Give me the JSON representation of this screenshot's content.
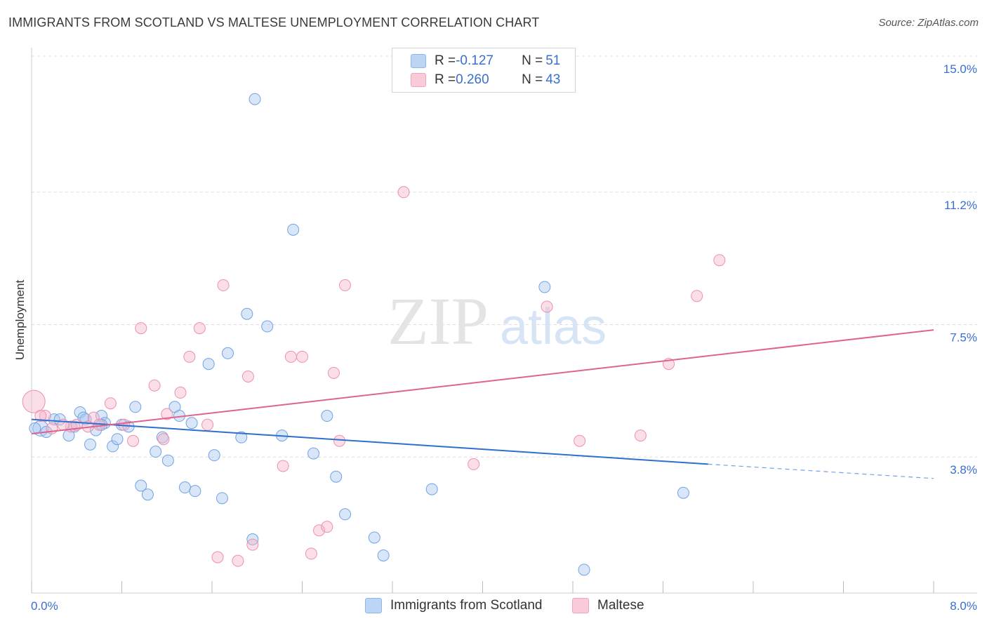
{
  "header": {
    "title": "IMMIGRANTS FROM SCOTLAND VS MALTESE UNEMPLOYMENT CORRELATION CHART",
    "source": "Source: ZipAtlas.com"
  },
  "watermark": {
    "zip": "ZIP",
    "atlas": "atlas"
  },
  "legend": {
    "rows": [
      {
        "r_label": "R = ",
        "r_value": "-0.127",
        "n_label": "N = ",
        "n_value": "51",
        "color": "#a9c8f0"
      },
      {
        "r_label": "R = ",
        "r_value": "0.260",
        "n_label": "N = ",
        "n_value": "43",
        "color": "#f5b8cb"
      }
    ]
  },
  "bottom_legend": {
    "items": [
      {
        "label": "Immigrants from Scotland",
        "color": "#a9c8f0"
      },
      {
        "label": "Maltese",
        "color": "#f5b8cb"
      }
    ]
  },
  "chart_data": {
    "type": "scatter",
    "title": "IMMIGRANTS FROM SCOTLAND VS MALTESE UNEMPLOYMENT CORRELATION CHART",
    "xlabel": "",
    "ylabel": "Unemployment",
    "xlim": [
      0,
      8.0
    ],
    "ylim": [
      0,
      15.0
    ],
    "x_tick_labels": [
      "0.0%",
      "8.0%"
    ],
    "y_tick_labels": [
      "3.8%",
      "7.5%",
      "11.2%",
      "15.0%"
    ],
    "y_ticks": [
      3.8,
      7.5,
      11.2,
      15.0
    ],
    "grid": true,
    "series": [
      {
        "name": "Immigrants from Scotland",
        "color": "#6fa3e6",
        "trend": {
          "x0": 0.0,
          "y0": 4.85,
          "x1": 6.0,
          "y1": 3.6,
          "x_dash_end": 8.0,
          "y_dash_end": 3.2
        },
        "points": [
          [
            0.08,
            4.6
          ],
          [
            0.13,
            4.5
          ],
          [
            0.2,
            4.85
          ],
          [
            0.25,
            4.85
          ],
          [
            0.33,
            4.4
          ],
          [
            0.38,
            4.65
          ],
          [
            0.43,
            5.05
          ],
          [
            0.48,
            4.85
          ],
          [
            0.52,
            4.15
          ],
          [
            0.57,
            4.55
          ],
          [
            0.62,
            4.95
          ],
          [
            0.65,
            4.75
          ],
          [
            0.72,
            4.1
          ],
          [
            0.76,
            4.3
          ],
          [
            0.8,
            4.7
          ],
          [
            0.86,
            4.65
          ],
          [
            0.92,
            5.2
          ],
          [
            0.97,
            3.0
          ],
          [
            1.03,
            2.75
          ],
          [
            1.1,
            3.95
          ],
          [
            1.16,
            4.35
          ],
          [
            1.21,
            3.7
          ],
          [
            1.27,
            5.2
          ],
          [
            1.31,
            4.95
          ],
          [
            1.36,
            2.95
          ],
          [
            1.42,
            4.75
          ],
          [
            1.45,
            2.85
          ],
          [
            1.57,
            6.4
          ],
          [
            1.62,
            3.85
          ],
          [
            1.69,
            2.65
          ],
          [
            1.74,
            6.7
          ],
          [
            1.86,
            4.35
          ],
          [
            1.91,
            7.8
          ],
          [
            1.96,
            1.5
          ],
          [
            1.98,
            13.8
          ],
          [
            2.09,
            7.45
          ],
          [
            2.22,
            4.4
          ],
          [
            2.32,
            10.15
          ],
          [
            2.5,
            3.9
          ],
          [
            2.62,
            4.95
          ],
          [
            2.7,
            3.25
          ],
          [
            2.78,
            2.2
          ],
          [
            3.04,
            1.55
          ],
          [
            3.12,
            1.05
          ],
          [
            3.55,
            2.9
          ],
          [
            4.55,
            8.55
          ],
          [
            4.9,
            0.65
          ],
          [
            5.78,
            2.8
          ],
          [
            0.03,
            4.6
          ],
          [
            0.62,
            4.7
          ],
          [
            0.46,
            4.9
          ]
        ]
      },
      {
        "name": "Maltese",
        "color": "#ee8fae",
        "trend": {
          "x0": 0.0,
          "y0": 4.45,
          "x1": 8.0,
          "y1": 7.35
        },
        "points": [
          [
            0.02,
            5.35
          ],
          [
            0.12,
            4.95
          ],
          [
            0.18,
            4.6
          ],
          [
            0.35,
            4.65
          ],
          [
            0.4,
            4.7
          ],
          [
            0.55,
            4.9
          ],
          [
            0.6,
            4.7
          ],
          [
            0.7,
            5.3
          ],
          [
            0.82,
            4.7
          ],
          [
            0.9,
            4.25
          ],
          [
            0.97,
            7.4
          ],
          [
            1.09,
            5.8
          ],
          [
            1.17,
            4.3
          ],
          [
            1.32,
            5.6
          ],
          [
            1.4,
            6.6
          ],
          [
            1.49,
            7.4
          ],
          [
            1.56,
            4.7
          ],
          [
            1.65,
            1.0
          ],
          [
            1.7,
            8.6
          ],
          [
            1.83,
            0.9
          ],
          [
            1.92,
            6.05
          ],
          [
            1.96,
            1.35
          ],
          [
            2.23,
            3.55
          ],
          [
            2.3,
            6.6
          ],
          [
            2.4,
            6.6
          ],
          [
            2.48,
            1.1
          ],
          [
            2.55,
            1.75
          ],
          [
            2.62,
            1.85
          ],
          [
            2.68,
            6.15
          ],
          [
            2.73,
            4.25
          ],
          [
            2.78,
            8.6
          ],
          [
            3.3,
            11.2
          ],
          [
            3.92,
            3.6
          ],
          [
            4.57,
            8.0
          ],
          [
            4.86,
            4.25
          ],
          [
            5.4,
            4.4
          ],
          [
            5.65,
            6.4
          ],
          [
            5.9,
            8.3
          ],
          [
            6.1,
            9.3
          ],
          [
            0.08,
            4.95
          ],
          [
            0.28,
            4.7
          ],
          [
            0.5,
            4.65
          ],
          [
            1.2,
            5.0
          ]
        ]
      }
    ]
  }
}
